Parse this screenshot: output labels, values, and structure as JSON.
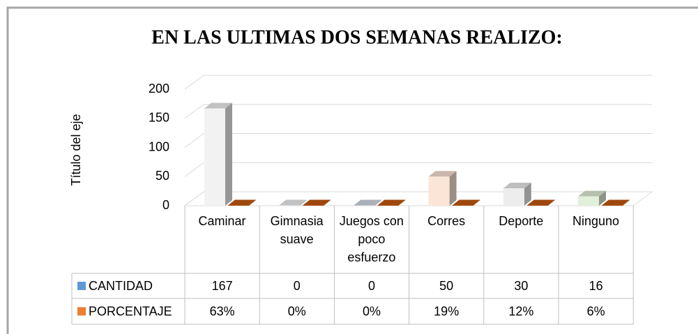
{
  "chart_data": {
    "type": "bar3d",
    "title": "EN LAS ULTIMAS DOS SEMANAS REALIZO:",
    "y_label": "Título del eje",
    "categories": [
      "Caminar",
      "Gimnasia suave",
      "Juegos con poco esfuerzo",
      "Corres",
      "Deporte",
      "Ninguno"
    ],
    "series": [
      {
        "name": "CANTIDAD",
        "color": "#5b9bd5",
        "point_colors": [
          "#f2f2f2",
          "#f2f2f2",
          "#d6dce5",
          "#fbe5d6",
          "#ededed",
          "#e2f0d9"
        ],
        "values": [
          167,
          0,
          0,
          50,
          30,
          16
        ]
      },
      {
        "name": "PORCENTAJE",
        "color": "#ed7d31",
        "point_colors": [
          "#c55a11",
          "#c55a11",
          "#c55a11",
          "#c55a11",
          "#c55a11",
          "#c55a11"
        ],
        "values": [
          0.63,
          0,
          0,
          0.19,
          0.12,
          0.06
        ],
        "value_labels": [
          "63%",
          "0%",
          "0%",
          "19%",
          "12%",
          "6%"
        ]
      }
    ],
    "ylim": [
      0,
      200
    ],
    "yticks": [
      0,
      50,
      100,
      150,
      200
    ],
    "grid": true
  }
}
